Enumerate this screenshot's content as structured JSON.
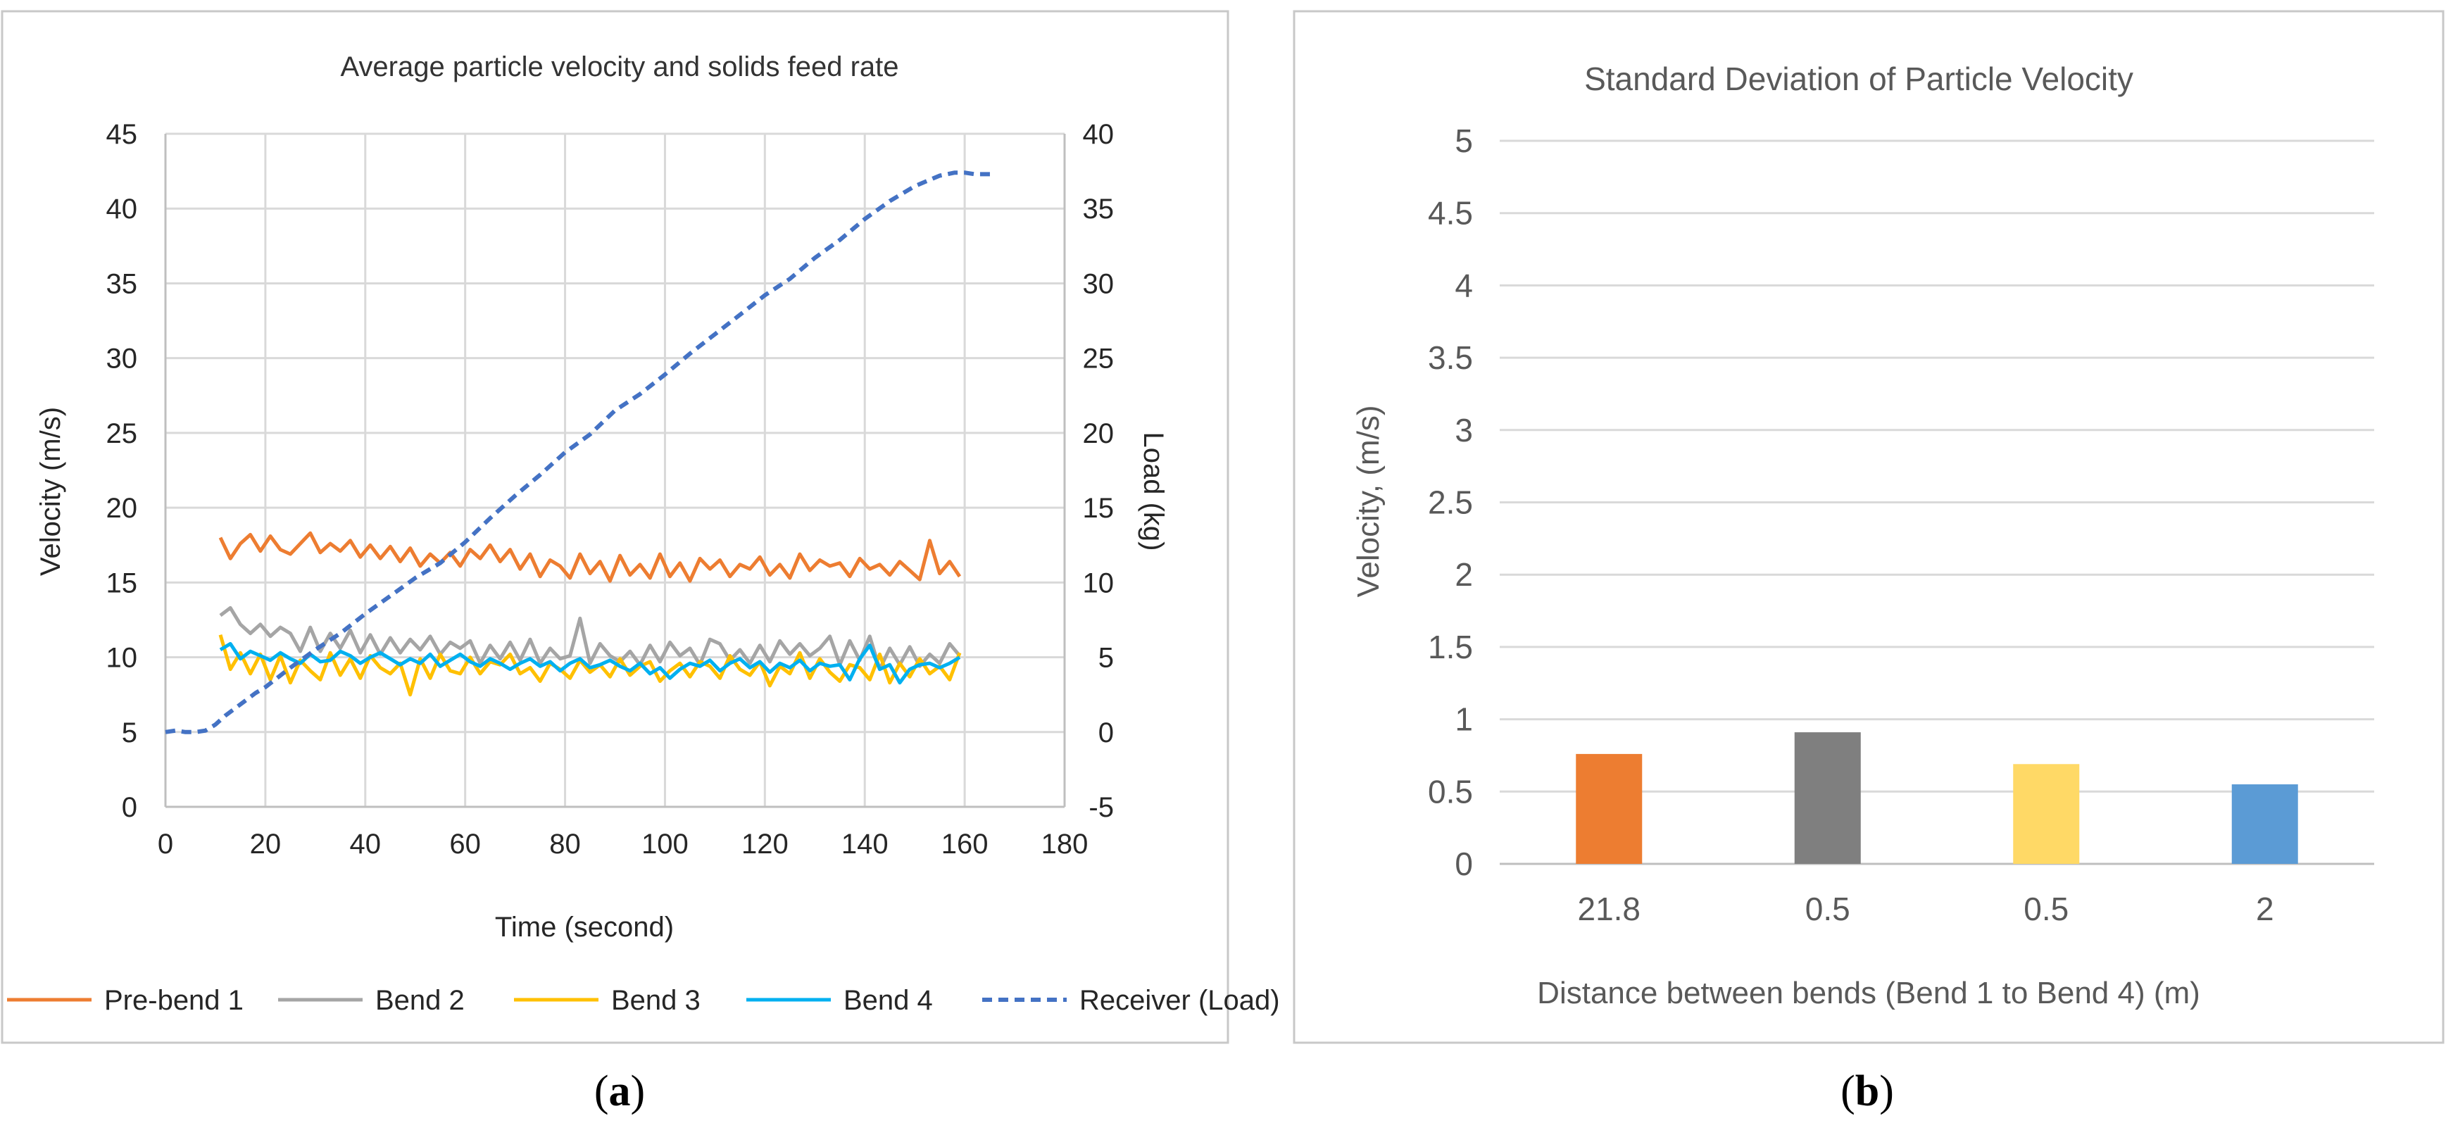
{
  "chart_data": [
    {
      "type": "line",
      "title": "Average particle velocity and solids feed rate",
      "xlabel": "Time (second)",
      "ylabel": "Velocity (m/s)",
      "y2label": "Load (kg)",
      "xlim": [
        0,
        180
      ],
      "ylim": [
        0,
        45
      ],
      "y2lim": [
        -5,
        40
      ],
      "xticks": [
        "0",
        "20",
        "40",
        "60",
        "80",
        "100",
        "120",
        "140",
        "160",
        "180"
      ],
      "yticks": [
        "0",
        "5",
        "10",
        "15",
        "20",
        "25",
        "30",
        "35",
        "40",
        "45"
      ],
      "y2ticks": [
        "-5",
        "0",
        "5",
        "10",
        "15",
        "20",
        "25",
        "30",
        "35",
        "40"
      ],
      "grid": true,
      "legend_position": "bottom",
      "series": [
        {
          "name": "Pre-bend 1",
          "axis": "left",
          "color": "#ED7D31",
          "dashed": false,
          "x": [
            11,
            13,
            15,
            17,
            19,
            21,
            23,
            25,
            27,
            29,
            31,
            33,
            35,
            37,
            39,
            41,
            43,
            45,
            47,
            49,
            51,
            53,
            55,
            57,
            59,
            61,
            63,
            65,
            67,
            69,
            71,
            73,
            75,
            77,
            79,
            81,
            83,
            85,
            87,
            89,
            91,
            93,
            95,
            97,
            99,
            101,
            103,
            105,
            107,
            109,
            111,
            113,
            115,
            117,
            119,
            121,
            123,
            125,
            127,
            129,
            131,
            133,
            135,
            137,
            139,
            141,
            143,
            145,
            147,
            149,
            151,
            153,
            155,
            157,
            159
          ],
          "y": [
            18,
            16.6,
            17.6,
            18.2,
            17.1,
            18.1,
            17.2,
            16.9,
            17.6,
            18.3,
            17,
            17.6,
            17.1,
            17.8,
            16.7,
            17.5,
            16.6,
            17.4,
            16.4,
            17.3,
            16.1,
            16.9,
            16.3,
            17,
            16.1,
            17.2,
            16.6,
            17.5,
            16.4,
            17.2,
            15.9,
            16.9,
            15.4,
            16.5,
            16.1,
            15.3,
            16.9,
            15.6,
            16.4,
            15.1,
            16.8,
            15.5,
            16.2,
            15.3,
            16.9,
            15.4,
            16.3,
            15.1,
            16.6,
            15.9,
            16.5,
            15.4,
            16.2,
            15.9,
            16.7,
            15.5,
            16.2,
            15.3,
            16.9,
            15.8,
            16.5,
            16.1,
            16.3,
            15.4,
            16.6,
            15.9,
            16.2,
            15.5,
            16.4,
            15.8,
            15.2,
            17.8,
            15.6,
            16.4,
            15.4
          ]
        },
        {
          "name": "Bend 2",
          "axis": "left",
          "color": "#A5A5A5",
          "dashed": false,
          "x": [
            11,
            13,
            15,
            17,
            19,
            21,
            23,
            25,
            27,
            29,
            31,
            33,
            35,
            37,
            39,
            41,
            43,
            45,
            47,
            49,
            51,
            53,
            55,
            57,
            59,
            61,
            63,
            65,
            67,
            69,
            71,
            73,
            75,
            77,
            79,
            81,
            83,
            85,
            87,
            89,
            91,
            93,
            95,
            97,
            99,
            101,
            103,
            105,
            107,
            109,
            111,
            113,
            115,
            117,
            119,
            121,
            123,
            125,
            127,
            129,
            131,
            133,
            135,
            137,
            139,
            141,
            143,
            145,
            147,
            149,
            151,
            153,
            155,
            157,
            159
          ],
          "y": [
            12.8,
            13.3,
            12.2,
            11.6,
            12.2,
            11.4,
            12,
            11.6,
            10.4,
            12,
            10.4,
            11.6,
            10.6,
            11.8,
            10.3,
            11.5,
            10.2,
            11.3,
            10.3,
            11.2,
            10.5,
            11.4,
            10.2,
            11,
            10.6,
            11.1,
            9.6,
            10.8,
            9.9,
            11,
            9.8,
            11.2,
            9.6,
            10.6,
            9.9,
            10.1,
            12.6,
            9.6,
            10.9,
            10.1,
            9.7,
            10.4,
            9.5,
            10.8,
            9.7,
            11,
            10.1,
            10.6,
            9.5,
            11.2,
            10.9,
            9.8,
            10.5,
            9.6,
            10.8,
            9.7,
            11.1,
            10.2,
            10.9,
            10.1,
            10.6,
            11.4,
            9.5,
            11.1,
            9.8,
            11.4,
            9.2,
            10.6,
            9.5,
            10.7,
            9.4,
            10.2,
            9.6,
            10.9,
            10.1
          ]
        },
        {
          "name": "Bend 3",
          "axis": "left",
          "color": "#FFC000",
          "dashed": false,
          "x": [
            11,
            13,
            15,
            17,
            19,
            21,
            23,
            25,
            27,
            29,
            31,
            33,
            35,
            37,
            39,
            41,
            43,
            45,
            47,
            49,
            51,
            53,
            55,
            57,
            59,
            61,
            63,
            65,
            67,
            69,
            71,
            73,
            75,
            77,
            79,
            81,
            83,
            85,
            87,
            89,
            91,
            93,
            95,
            97,
            99,
            101,
            103,
            105,
            107,
            109,
            111,
            113,
            115,
            117,
            119,
            121,
            123,
            125,
            127,
            129,
            131,
            133,
            135,
            137,
            139,
            141,
            143,
            145,
            147,
            149,
            151,
            153,
            155,
            157,
            159
          ],
          "y": [
            11.5,
            9.2,
            10.3,
            8.9,
            10.2,
            8.5,
            10.1,
            8.3,
            9.8,
            9.1,
            8.5,
            10.3,
            8.8,
            9.9,
            8.6,
            10.1,
            9.3,
            8.9,
            9.6,
            7.5,
            9.9,
            8.6,
            10.2,
            9.1,
            8.9,
            10,
            8.9,
            9.7,
            9.5,
            10.2,
            8.9,
            9.3,
            8.4,
            9.6,
            9.2,
            8.6,
            9.8,
            9,
            9.5,
            8.7,
            9.9,
            8.8,
            9.4,
            9.7,
            8.4,
            9.1,
            9.6,
            8.7,
            9.7,
            9.4,
            8.6,
            10.1,
            9.2,
            8.8,
            9.7,
            8.1,
            9.4,
            8.9,
            10.3,
            8.6,
            9.9,
            9,
            8.4,
            9.5,
            9.3,
            8.5,
            10.2,
            8.3,
            9.6,
            8.7,
            9.9,
            8.9,
            9.4,
            8.5,
            10.3
          ]
        },
        {
          "name": "Bend 4",
          "axis": "left",
          "color": "#00B0F0",
          "dashed": false,
          "x": [
            11,
            13,
            15,
            17,
            19,
            21,
            23,
            25,
            27,
            29,
            31,
            33,
            35,
            37,
            39,
            41,
            43,
            45,
            47,
            49,
            51,
            53,
            55,
            57,
            59,
            61,
            63,
            65,
            67,
            69,
            71,
            73,
            75,
            77,
            79,
            81,
            83,
            85,
            87,
            89,
            91,
            93,
            95,
            97,
            99,
            101,
            103,
            105,
            107,
            109,
            111,
            113,
            115,
            117,
            119,
            121,
            123,
            125,
            127,
            129,
            131,
            133,
            135,
            137,
            139,
            141,
            143,
            145,
            147,
            149,
            151,
            153,
            155,
            157,
            159
          ],
          "y": [
            10.5,
            10.9,
            9.9,
            10.4,
            10.1,
            9.8,
            10.3,
            9.9,
            9.6,
            10.2,
            9.7,
            9.8,
            10.4,
            10.1,
            9.6,
            10,
            10.3,
            9.9,
            9.5,
            9.9,
            9.6,
            10.2,
            9.4,
            9.8,
            10.2,
            9.7,
            9.4,
            9.9,
            9.6,
            9.2,
            9.6,
            9.9,
            9.4,
            9.7,
            9.1,
            9.6,
            9.9,
            9.3,
            9.5,
            9.8,
            9.4,
            9.1,
            9.6,
            8.9,
            9.3,
            8.6,
            9.2,
            9.6,
            9.4,
            9.8,
            9.1,
            9.6,
            9.9,
            9.3,
            9.7,
            9,
            9.6,
            9.3,
            9.8,
            9.1,
            9.6,
            9.4,
            9.5,
            8.5,
            9.9,
            10.8,
            9.2,
            9.5,
            8.3,
            9.2,
            9.5,
            9.6,
            9.3,
            9.6,
            10
          ]
        },
        {
          "name": "Receiver (Load)",
          "axis": "right",
          "color": "#4472C4",
          "dashed": true,
          "x": [
            0,
            2,
            4,
            6,
            8,
            10,
            12,
            14,
            16,
            18,
            20,
            25,
            30,
            35,
            40,
            45,
            50,
            55,
            60,
            65,
            70,
            75,
            80,
            85,
            90,
            95,
            100,
            105,
            110,
            115,
            120,
            125,
            130,
            135,
            140,
            145,
            150,
            155,
            158,
            160,
            162,
            164,
            166
          ],
          "y": [
            0,
            0.1,
            0,
            0,
            0.1,
            0.5,
            1.1,
            1.6,
            2.1,
            2.6,
            3,
            4.3,
            5.5,
            6.6,
            7.9,
            9.1,
            10.3,
            11.3,
            12.7,
            14.3,
            15.8,
            17.2,
            18.7,
            19.9,
            21.5,
            22.6,
            23.9,
            25.3,
            26.6,
            27.9,
            29.2,
            30.3,
            31.7,
            32.9,
            34.3,
            35.5,
            36.5,
            37.2,
            37.4,
            37.4,
            37.3,
            37.3,
            37.3
          ]
        }
      ]
    },
    {
      "type": "bar",
      "title": "Standard Deviation of  Particle Velocity",
      "xlabel": "Distance between bends (Bend 1 to Bend 4) (m)",
      "ylabel": "Velocity, (m/s)",
      "ylim": [
        0,
        5
      ],
      "yticks": [
        "0",
        "0.5",
        "1",
        "1.5",
        "2",
        "2.5",
        "3",
        "3.5",
        "4",
        "4.5",
        "5"
      ],
      "grid": true,
      "categories": [
        "21.8",
        "0.5",
        "0.5",
        "2"
      ],
      "values": [
        0.76,
        0.91,
        0.69,
        0.55
      ],
      "colors": [
        "#ED7D31",
        "#7F7F7F",
        "#FFD966",
        "#5B9BD5"
      ]
    }
  ],
  "panel_labels": {
    "a": "(a)",
    "b": "(b)"
  },
  "panel_label_letters": {
    "a": "a",
    "b": "b"
  }
}
